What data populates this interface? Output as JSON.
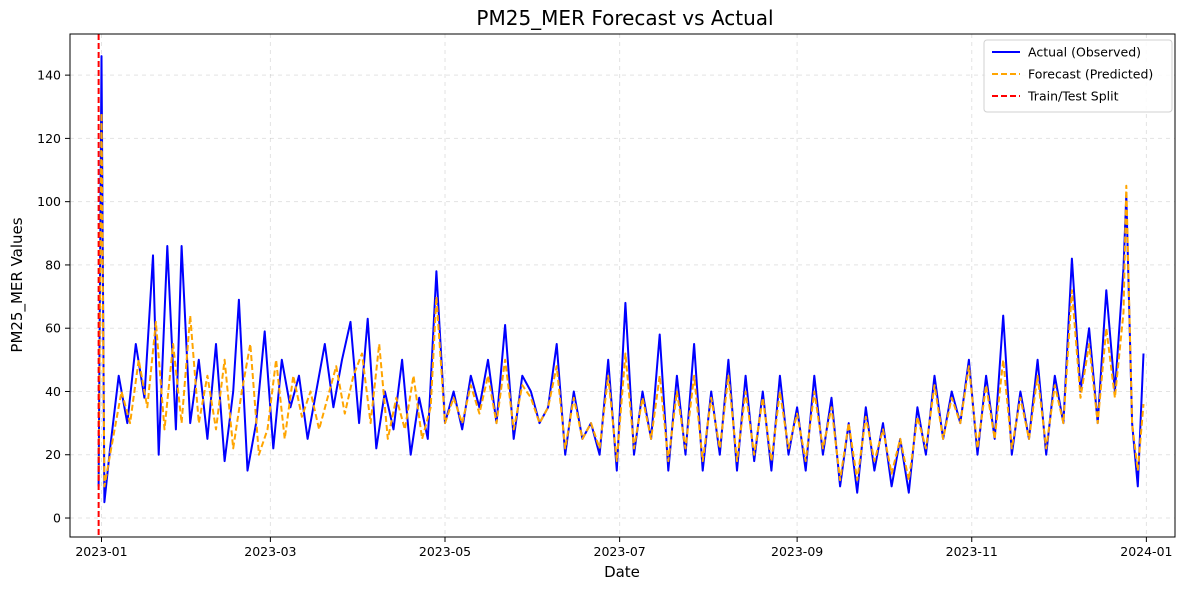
{
  "chart_data": {
    "type": "line",
    "title": "PM25_MER Forecast vs Actual",
    "xlabel": "Date",
    "ylabel": "PM25_MER Values",
    "xlim": [
      "2022-12-21",
      "2024-01-11"
    ],
    "ylim": [
      -6,
      153
    ],
    "x_ticks": [
      "2023-01",
      "2023-03",
      "2023-05",
      "2023-07",
      "2023-09",
      "2023-11",
      "2024-01"
    ],
    "y_ticks": [
      0,
      20,
      40,
      60,
      80,
      100,
      120,
      140
    ],
    "grid": true,
    "legend_position": "top-right",
    "split_date": "2022-12-31",
    "series": [
      {
        "name": "Actual (Observed)",
        "color": "#0000ff",
        "style": "solid",
        "x": [
          "2022-12-31",
          "2023-01-01",
          "2023-01-02",
          "2023-01-04",
          "2023-01-07",
          "2023-01-10",
          "2023-01-13",
          "2023-01-16",
          "2023-01-19",
          "2023-01-21",
          "2023-01-24",
          "2023-01-27",
          "2023-01-29",
          "2023-02-01",
          "2023-02-04",
          "2023-02-07",
          "2023-02-10",
          "2023-02-13",
          "2023-02-16",
          "2023-02-18",
          "2023-02-21",
          "2023-02-24",
          "2023-02-27",
          "2023-03-02",
          "2023-03-05",
          "2023-03-08",
          "2023-03-11",
          "2023-03-14",
          "2023-03-17",
          "2023-03-20",
          "2023-03-23",
          "2023-03-26",
          "2023-03-29",
          "2023-04-01",
          "2023-04-04",
          "2023-04-07",
          "2023-04-10",
          "2023-04-13",
          "2023-04-16",
          "2023-04-19",
          "2023-04-22",
          "2023-04-25",
          "2023-04-28",
          "2023-05-01",
          "2023-05-04",
          "2023-05-07",
          "2023-05-10",
          "2023-05-13",
          "2023-05-16",
          "2023-05-19",
          "2023-05-22",
          "2023-05-25",
          "2023-05-28",
          "2023-05-31",
          "2023-06-03",
          "2023-06-06",
          "2023-06-09",
          "2023-06-12",
          "2023-06-15",
          "2023-06-18",
          "2023-06-21",
          "2023-06-24",
          "2023-06-27",
          "2023-06-30",
          "2023-07-03",
          "2023-07-06",
          "2023-07-09",
          "2023-07-12",
          "2023-07-15",
          "2023-07-18",
          "2023-07-21",
          "2023-07-24",
          "2023-07-27",
          "2023-07-30",
          "2023-08-02",
          "2023-08-05",
          "2023-08-08",
          "2023-08-11",
          "2023-08-14",
          "2023-08-17",
          "2023-08-20",
          "2023-08-23",
          "2023-08-26",
          "2023-08-29",
          "2023-09-01",
          "2023-09-04",
          "2023-09-07",
          "2023-09-10",
          "2023-09-13",
          "2023-09-16",
          "2023-09-19",
          "2023-09-22",
          "2023-09-25",
          "2023-09-28",
          "2023-10-01",
          "2023-10-04",
          "2023-10-07",
          "2023-10-10",
          "2023-10-13",
          "2023-10-16",
          "2023-10-19",
          "2023-10-22",
          "2023-10-25",
          "2023-10-28",
          "2023-10-31",
          "2023-11-03",
          "2023-11-06",
          "2023-11-09",
          "2023-11-12",
          "2023-11-15",
          "2023-11-18",
          "2023-11-21",
          "2023-11-24",
          "2023-11-27",
          "2023-11-30",
          "2023-12-03",
          "2023-12-06",
          "2023-12-09",
          "2023-12-12",
          "2023-12-15",
          "2023-12-18",
          "2023-12-21",
          "2023-12-24",
          "2023-12-25",
          "2023-12-27",
          "2023-12-29",
          "2023-12-31"
        ],
        "y": [
          10,
          146,
          5,
          22,
          45,
          30,
          55,
          38,
          83,
          20,
          86,
          28,
          86,
          30,
          50,
          25,
          55,
          18,
          40,
          69,
          15,
          30,
          59,
          22,
          50,
          35,
          45,
          25,
          40,
          55,
          35,
          50,
          62,
          30,
          63,
          22,
          40,
          28,
          50,
          20,
          38,
          25,
          78,
          30,
          40,
          28,
          45,
          35,
          50,
          30,
          61,
          25,
          45,
          40,
          30,
          35,
          55,
          20,
          40,
          25,
          30,
          20,
          50,
          15,
          68,
          20,
          40,
          25,
          58,
          15,
          45,
          20,
          55,
          15,
          40,
          20,
          50,
          15,
          45,
          18,
          40,
          15,
          45,
          20,
          35,
          15,
          45,
          20,
          38,
          10,
          30,
          8,
          35,
          15,
          30,
          10,
          25,
          8,
          35,
          20,
          45,
          25,
          40,
          30,
          50,
          20,
          45,
          25,
          64,
          20,
          40,
          25,
          50,
          20,
          45,
          30,
          82,
          40,
          60,
          30,
          72,
          40,
          79,
          102,
          30,
          10,
          52
        ]
      },
      {
        "name": "Forecast (Predicted)",
        "color": "#ffa500",
        "style": "dashed",
        "x": [
          "2022-12-31",
          "2023-01-01",
          "2023-01-02",
          "2023-01-05",
          "2023-01-08",
          "2023-01-11",
          "2023-01-14",
          "2023-01-17",
          "2023-01-20",
          "2023-01-23",
          "2023-01-26",
          "2023-01-29",
          "2023-02-01",
          "2023-02-04",
          "2023-02-07",
          "2023-02-10",
          "2023-02-13",
          "2023-02-16",
          "2023-02-19",
          "2023-02-22",
          "2023-02-25",
          "2023-02-28",
          "2023-03-03",
          "2023-03-06",
          "2023-03-09",
          "2023-03-12",
          "2023-03-15",
          "2023-03-18",
          "2023-03-21",
          "2023-03-24",
          "2023-03-27",
          "2023-03-30",
          "2023-04-02",
          "2023-04-05",
          "2023-04-08",
          "2023-04-11",
          "2023-04-14",
          "2023-04-17",
          "2023-04-20",
          "2023-04-23",
          "2023-04-26",
          "2023-04-28",
          "2023-05-01",
          "2023-05-04",
          "2023-05-07",
          "2023-05-10",
          "2023-05-13",
          "2023-05-16",
          "2023-05-19",
          "2023-05-22",
          "2023-05-25",
          "2023-05-28",
          "2023-05-31",
          "2023-06-03",
          "2023-06-06",
          "2023-06-09",
          "2023-06-12",
          "2023-06-15",
          "2023-06-18",
          "2023-06-21",
          "2023-06-24",
          "2023-06-27",
          "2023-06-30",
          "2023-07-03",
          "2023-07-06",
          "2023-07-09",
          "2023-07-12",
          "2023-07-15",
          "2023-07-18",
          "2023-07-21",
          "2023-07-24",
          "2023-07-27",
          "2023-07-30",
          "2023-08-02",
          "2023-08-05",
          "2023-08-08",
          "2023-08-11",
          "2023-08-14",
          "2023-08-17",
          "2023-08-20",
          "2023-08-23",
          "2023-08-26",
          "2023-08-29",
          "2023-09-01",
          "2023-09-04",
          "2023-09-07",
          "2023-09-10",
          "2023-09-13",
          "2023-09-16",
          "2023-09-19",
          "2023-09-22",
          "2023-09-25",
          "2023-09-28",
          "2023-10-01",
          "2023-10-04",
          "2023-10-07",
          "2023-10-10",
          "2023-10-13",
          "2023-10-16",
          "2023-10-19",
          "2023-10-22",
          "2023-10-25",
          "2023-10-28",
          "2023-10-31",
          "2023-11-03",
          "2023-11-06",
          "2023-11-09",
          "2023-11-12",
          "2023-11-15",
          "2023-11-18",
          "2023-11-21",
          "2023-11-24",
          "2023-11-27",
          "2023-11-30",
          "2023-12-03",
          "2023-12-06",
          "2023-12-09",
          "2023-12-12",
          "2023-12-15",
          "2023-12-18",
          "2023-12-21",
          "2023-12-24",
          "2023-12-25",
          "2023-12-27",
          "2023-12-29",
          "2023-12-31"
        ],
        "y": [
          12,
          128,
          10,
          25,
          40,
          30,
          50,
          35,
          62,
          28,
          55,
          30,
          64,
          30,
          45,
          28,
          50,
          22,
          40,
          55,
          20,
          28,
          50,
          25,
          45,
          32,
          40,
          28,
          38,
          48,
          33,
          45,
          52,
          30,
          55,
          25,
          38,
          28,
          45,
          25,
          35,
          70,
          30,
          38,
          30,
          42,
          33,
          45,
          30,
          50,
          28,
          42,
          38,
          30,
          35,
          48,
          22,
          38,
          25,
          30,
          22,
          45,
          18,
          52,
          22,
          38,
          25,
          45,
          18,
          40,
          22,
          45,
          18,
          38,
          22,
          45,
          18,
          40,
          20,
          38,
          18,
          40,
          22,
          33,
          18,
          40,
          22,
          35,
          12,
          30,
          12,
          32,
          18,
          28,
          14,
          25,
          12,
          32,
          22,
          42,
          25,
          38,
          30,
          48,
          22,
          42,
          25,
          50,
          22,
          38,
          25,
          45,
          22,
          42,
          30,
          72,
          38,
          55,
          30,
          60,
          38,
          65,
          105,
          30,
          15,
          36
        ]
      }
    ],
    "vertical_line": {
      "name": "Train/Test Split",
      "color": "#ff0000",
      "style": "dashed"
    }
  }
}
